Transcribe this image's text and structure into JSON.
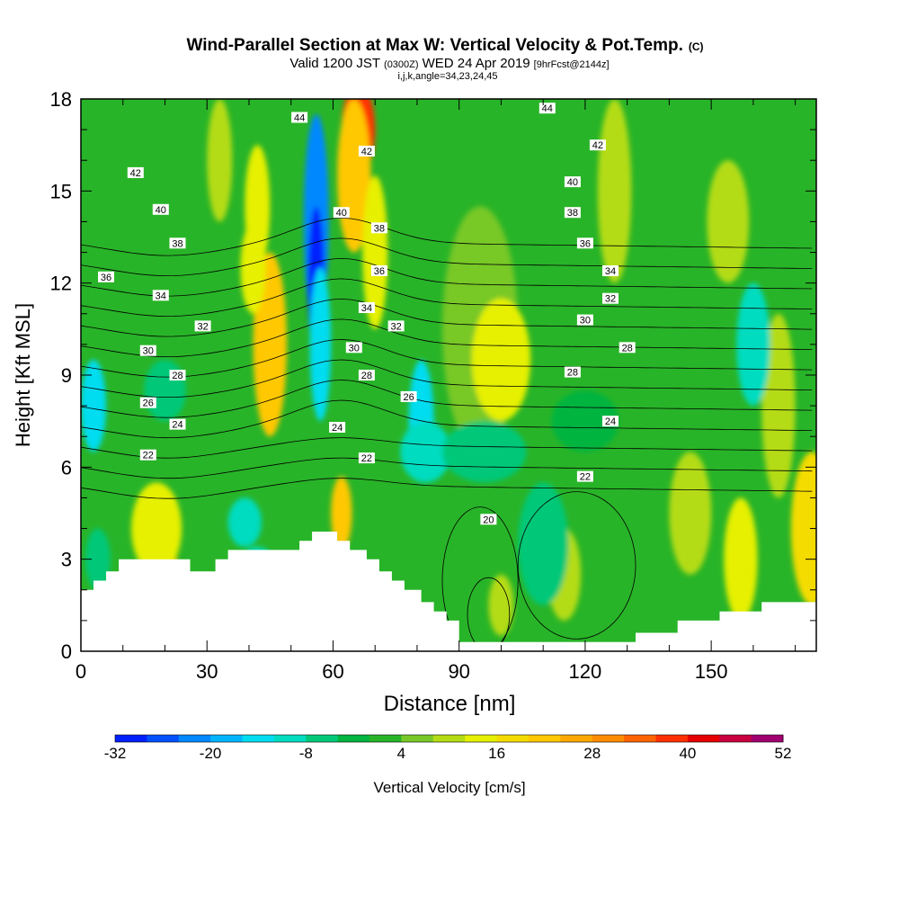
{
  "chart_data": {
    "type": "heatmap",
    "title": {
      "main": "Wind-Parallel Section at Max W: Vertical Velocity & Pot.Temp.",
      "main_suffix": "(C)",
      "line2_a": "Valid 1200 JST",
      "line2_b": "(0300Z)",
      "line2_c": "WED 24 Apr 2019",
      "line2_d": "[9hrFcst@2144z]",
      "line3": "i,j,k,angle=34,23,24,45"
    },
    "xlabel": "Distance [nm]",
    "ylabel": "Height [Kft MSL]",
    "xlim": [
      0,
      175
    ],
    "ylim": [
      0,
      18
    ],
    "xticks": [
      0,
      30,
      60,
      90,
      120,
      150
    ],
    "yticks": [
      0,
      3,
      6,
      9,
      12,
      15,
      18
    ],
    "colorbar": {
      "label": "Vertical Velocity [cm/s]",
      "tick_labels": [
        "-32",
        "-20",
        "-8",
        "4",
        "16",
        "28",
        "40",
        "52"
      ],
      "levels": [
        -32,
        -28,
        -24,
        -20,
        -16,
        -12,
        -8,
        -4,
        0,
        4,
        8,
        12,
        16,
        20,
        24,
        28,
        32,
        36,
        40,
        44,
        48,
        52
      ],
      "colors": [
        "#0020ff",
        "#0050ff",
        "#0088ff",
        "#00b4ff",
        "#00dcf0",
        "#00dcc0",
        "#00c878",
        "#00b440",
        "#28b428",
        "#78c828",
        "#b4dc14",
        "#e6f000",
        "#f5dc00",
        "#ffc800",
        "#ffa800",
        "#ff8c00",
        "#ff6400",
        "#ff3000",
        "#e60000",
        "#c80040",
        "#a00070"
      ]
    },
    "theta_label_values": [
      "44",
      "42",
      "40",
      "38",
      "36",
      "34",
      "32",
      "30",
      "28",
      "26",
      "24",
      "22",
      "20"
    ],
    "theta_labels": [
      {
        "t": "44",
        "x": 52,
        "y": 17.4
      },
      {
        "t": "44",
        "x": 111,
        "y": 17.7
      },
      {
        "t": "42",
        "x": 13,
        "y": 15.6
      },
      {
        "t": "42",
        "x": 68,
        "y": 16.3
      },
      {
        "t": "42",
        "x": 123,
        "y": 16.5
      },
      {
        "t": "40",
        "x": 19,
        "y": 14.4
      },
      {
        "t": "40",
        "x": 62,
        "y": 14.3
      },
      {
        "t": "40",
        "x": 117,
        "y": 15.3
      },
      {
        "t": "38",
        "x": 23,
        "y": 13.3
      },
      {
        "t": "38",
        "x": 71,
        "y": 13.8
      },
      {
        "t": "38",
        "x": 117,
        "y": 14.3
      },
      {
        "t": "36",
        "x": 6,
        "y": 12.2
      },
      {
        "t": "36",
        "x": 71,
        "y": 12.4
      },
      {
        "t": "36",
        "x": 120,
        "y": 13.3
      },
      {
        "t": "34",
        "x": 19,
        "y": 11.6
      },
      {
        "t": "34",
        "x": 68,
        "y": 11.2
      },
      {
        "t": "34",
        "x": 126,
        "y": 12.4
      },
      {
        "t": "32",
        "x": 29,
        "y": 10.6
      },
      {
        "t": "32",
        "x": 75,
        "y": 10.6
      },
      {
        "t": "32",
        "x": 126,
        "y": 11.5
      },
      {
        "t": "30",
        "x": 16,
        "y": 9.8
      },
      {
        "t": "30",
        "x": 65,
        "y": 9.9
      },
      {
        "t": "30",
        "x": 120,
        "y": 10.8
      },
      {
        "t": "28",
        "x": 23,
        "y": 9.0
      },
      {
        "t": "28",
        "x": 68,
        "y": 9.0
      },
      {
        "t": "28",
        "x": 117,
        "y": 9.1
      },
      {
        "t": "28",
        "x": 130,
        "y": 9.9
      },
      {
        "t": "26",
        "x": 16,
        "y": 8.1
      },
      {
        "t": "26",
        "x": 78,
        "y": 8.3
      },
      {
        "t": "24",
        "x": 23,
        "y": 7.4
      },
      {
        "t": "24",
        "x": 61,
        "y": 7.3
      },
      {
        "t": "24",
        "x": 126,
        "y": 7.5
      },
      {
        "t": "22",
        "x": 16,
        "y": 6.4
      },
      {
        "t": "22",
        "x": 68,
        "y": 6.3
      },
      {
        "t": "22",
        "x": 120,
        "y": 5.7
      },
      {
        "t": "20",
        "x": 97,
        "y": 4.3
      }
    ],
    "terrain_kft": [
      [
        0,
        2
      ],
      [
        3,
        2
      ],
      [
        3,
        2.3
      ],
      [
        6,
        2.3
      ],
      [
        6,
        2.6
      ],
      [
        9,
        2.6
      ],
      [
        9,
        3.0
      ],
      [
        26,
        3.0
      ],
      [
        26,
        2.6
      ],
      [
        32,
        2.6
      ],
      [
        32,
        3.0
      ],
      [
        35,
        3.0
      ],
      [
        35,
        3.3
      ],
      [
        52,
        3.3
      ],
      [
        52,
        3.6
      ],
      [
        55,
        3.6
      ],
      [
        55,
        3.9
      ],
      [
        61,
        3.9
      ],
      [
        61,
        3.6
      ],
      [
        64,
        3.6
      ],
      [
        64,
        3.3
      ],
      [
        68,
        3.3
      ],
      [
        68,
        3.0
      ],
      [
        71,
        3.0
      ],
      [
        71,
        2.6
      ],
      [
        74,
        2.6
      ],
      [
        74,
        2.3
      ],
      [
        77,
        2.3
      ],
      [
        77,
        2.0
      ],
      [
        81,
        2.0
      ],
      [
        81,
        1.6
      ],
      [
        84,
        1.6
      ],
      [
        84,
        1.3
      ],
      [
        87,
        1.3
      ],
      [
        87,
        1.0
      ],
      [
        90,
        1.0
      ],
      [
        90,
        0.3
      ],
      [
        132,
        0.3
      ],
      [
        132,
        0.6
      ],
      [
        142,
        0.6
      ],
      [
        142,
        1.0
      ],
      [
        152,
        1.0
      ],
      [
        152,
        1.3
      ],
      [
        162,
        1.3
      ],
      [
        162,
        1.6
      ],
      [
        175,
        1.6
      ]
    ]
  }
}
